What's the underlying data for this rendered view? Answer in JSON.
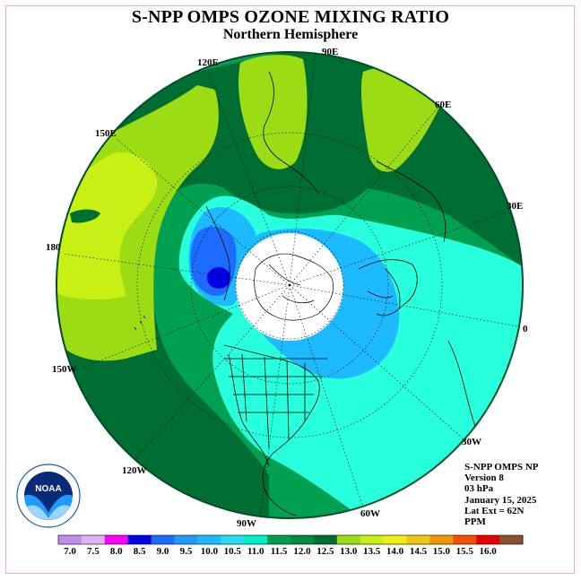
{
  "title": "S-NPP OMPS OZONE MIXING RATIO",
  "subtitle": "Northern Hemisphere",
  "info": {
    "instrument": "S-NPP OMPS NP",
    "version": "Version 8",
    "level": "03 hPa",
    "date": "January 15, 2025",
    "lat_ext": "Lat Ext = 62N",
    "units": "PPM"
  },
  "longitude_labels": {
    "lon_90e": "90E",
    "lon_60e": "60E",
    "lon_30e": "30E",
    "lon_0": "0",
    "lon_30w": "30W",
    "lon_60w": "60W",
    "lon_90w": "90W",
    "lon_120w": "120W",
    "lon_150w": "150W",
    "lon_180": "180",
    "lon_150e": "150E",
    "lon_120e": "120E"
  },
  "logo_text": "NOAA",
  "colorbar": {
    "labels": [
      "7.0",
      "7.5",
      "8.0",
      "8.5",
      "9.0",
      "9.5",
      "10.0",
      "10.5",
      "11.0",
      "11.5",
      "12.0",
      "12.5",
      "13.0",
      "13.5",
      "14.0",
      "14.5",
      "15.0",
      "15.5",
      "16.0"
    ],
    "colors": [
      "#c08cf0",
      "#e0b4f4",
      "#ff00ff",
      "#0000e6",
      "#1e6cff",
      "#1e9bff",
      "#1ebaff",
      "#28dcf0",
      "#00f0c8",
      "#00a050",
      "#008c3c",
      "#006e32",
      "#9bdc14",
      "#c8f014",
      "#f0f014",
      "#f0c814",
      "#f09600",
      "#f05000",
      "#e60000",
      "#8c5032"
    ]
  },
  "map_colors": {
    "ocean_disk": "#00a050",
    "dark_green": "#006e32",
    "light_green": "#9bdc14",
    "yellow_green": "#c8f014",
    "cyan": "#28ffdc",
    "light_blue": "#1ebaff",
    "blue": "#1e6cff",
    "dark_blue": "#0000e6",
    "polar_cap": "#ffffff"
  }
}
